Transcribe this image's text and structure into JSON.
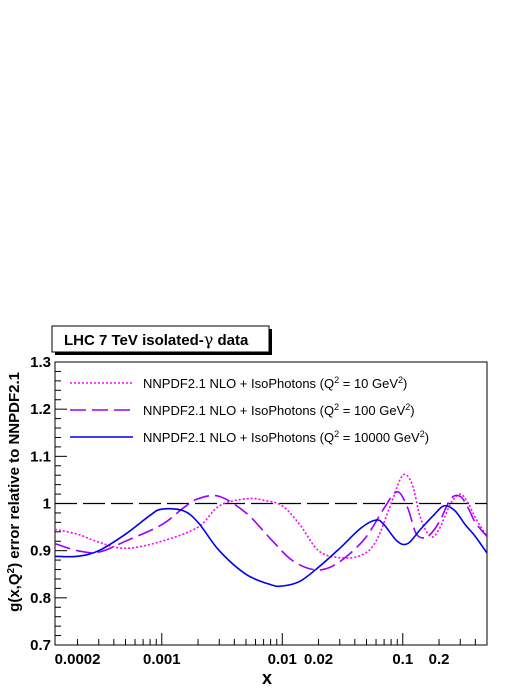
{
  "chart_data": {
    "type": "line",
    "title": "LHC 7 TeV isolated-γ data",
    "title_parts": {
      "before": "LHC 7 TeV isolated-",
      "greek": "γ",
      "after": " data"
    },
    "xlabel": "x",
    "ylabel": "g(x,Q²) error relative to NNPDF2.1",
    "ylabel_parts": {
      "prefix": "g(x,Q",
      "sup": "2",
      "suffix": ") error relative to NNPDF2.1"
    },
    "x_scale": "log",
    "xlim": [
      0.00013,
      0.5
    ],
    "ylim": [
      0.7,
      1.3
    ],
    "x_ticks": [
      {
        "value": 0.0002,
        "label": "0.0002"
      },
      {
        "value": 0.001,
        "label": "0.001"
      },
      {
        "value": 0.01,
        "label": "0.01"
      },
      {
        "value": 0.02,
        "label": "0.02"
      },
      {
        "value": 0.1,
        "label": "0.1"
      },
      {
        "value": 0.2,
        "label": "0.2"
      }
    ],
    "y_ticks": [
      {
        "value": 0.7,
        "label": "0.7"
      },
      {
        "value": 0.8,
        "label": "0.8"
      },
      {
        "value": 0.9,
        "label": "0.9"
      },
      {
        "value": 1.0,
        "label": "1"
      },
      {
        "value": 1.1,
        "label": "1.1"
      },
      {
        "value": 1.2,
        "label": "1.2"
      },
      {
        "value": 1.3,
        "label": "1.3"
      }
    ],
    "grid": false,
    "legend_position": "top",
    "reference_line": {
      "y": 1.0,
      "style": "long-dash",
      "color": "#000000"
    },
    "series": [
      {
        "name": "NNPDF2.1 NLO + IsoPhotons (Q² = 10 GeV²)",
        "label_prefix": "NNPDF2.1 NLO + IsoPhotons (Q",
        "label_mid": " = 10 GeV",
        "label_suffix": ")",
        "color": "#ff00ff",
        "style": "dotted",
        "x": [
          0.00013,
          0.0002,
          0.0003,
          0.0005,
          0.001,
          0.002,
          0.003,
          0.005,
          0.007,
          0.01,
          0.014,
          0.02,
          0.03,
          0.045,
          0.06,
          0.08,
          0.1,
          0.12,
          0.14,
          0.17,
          0.2,
          0.25,
          0.3,
          0.35,
          0.4,
          0.5
        ],
        "y": [
          0.945,
          0.935,
          0.918,
          0.905,
          0.92,
          0.95,
          0.995,
          1.01,
          1.007,
          0.995,
          0.955,
          0.9,
          0.885,
          0.89,
          0.92,
          1.0,
          1.06,
          1.04,
          0.97,
          0.93,
          0.945,
          1.0,
          1.02,
          1.0,
          0.97,
          0.93
        ]
      },
      {
        "name": "NNPDF2.1 NLO + IsoPhotons (Q² = 100 GeV²)",
        "label_prefix": "NNPDF2.1 NLO + IsoPhotons (Q",
        "label_mid": " = 100 GeV",
        "label_suffix": ")",
        "color": "#9900ff",
        "style": "dashed",
        "x": [
          0.00013,
          0.0002,
          0.0003,
          0.0005,
          0.001,
          0.0015,
          0.002,
          0.003,
          0.005,
          0.008,
          0.012,
          0.018,
          0.025,
          0.035,
          0.05,
          0.07,
          0.09,
          0.11,
          0.13,
          0.16,
          0.2,
          0.25,
          0.3,
          0.35,
          0.4,
          0.5
        ],
        "y": [
          0.915,
          0.9,
          0.897,
          0.92,
          0.955,
          0.99,
          1.01,
          1.015,
          0.98,
          0.925,
          0.88,
          0.86,
          0.865,
          0.89,
          0.93,
          0.99,
          1.025,
          0.99,
          0.935,
          0.93,
          0.96,
          1.01,
          1.015,
          0.99,
          0.96,
          0.93
        ]
      },
      {
        "name": "NNPDF2.1 NLO + IsoPhotons (Q² = 10000 GeV²)",
        "label_prefix": "NNPDF2.1 NLO + IsoPhotons (Q",
        "label_mid": " = 10000 GeV",
        "label_suffix": ")",
        "color": "#0000ee",
        "style": "solid",
        "x": [
          0.00013,
          0.0002,
          0.0003,
          0.0005,
          0.0008,
          0.001,
          0.0015,
          0.002,
          0.003,
          0.005,
          0.008,
          0.01,
          0.014,
          0.02,
          0.03,
          0.045,
          0.06,
          0.07,
          0.09,
          0.11,
          0.14,
          0.18,
          0.22,
          0.27,
          0.33,
          0.4,
          0.5
        ],
        "y": [
          0.888,
          0.888,
          0.9,
          0.935,
          0.975,
          0.988,
          0.985,
          0.96,
          0.9,
          0.85,
          0.828,
          0.825,
          0.835,
          0.865,
          0.905,
          0.948,
          0.965,
          0.955,
          0.92,
          0.915,
          0.945,
          0.975,
          0.995,
          0.985,
          0.955,
          0.93,
          0.895
        ]
      }
    ]
  }
}
